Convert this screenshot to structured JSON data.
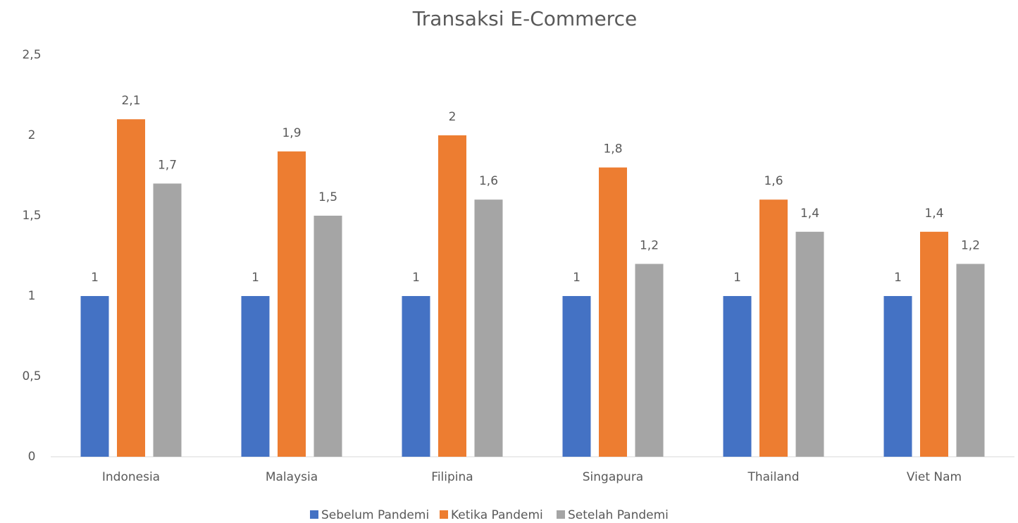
{
  "chart_data": {
    "type": "bar",
    "title": "Transaksi E-Commerce",
    "categories": [
      "Indonesia",
      "Malaysia",
      "Filipina",
      "Singapura",
      "Thailand",
      "Viet Nam"
    ],
    "series": [
      {
        "name": "Sebelum Pandemi",
        "color": "#4472c4",
        "values": [
          1,
          1,
          1,
          1,
          1,
          1
        ],
        "value_labels": [
          "1",
          "1",
          "1",
          "1",
          "1",
          "1"
        ]
      },
      {
        "name": "Ketika Pandemi",
        "color": "#ed7d31",
        "values": [
          2.1,
          1.9,
          2,
          1.8,
          1.6,
          1.4
        ],
        "value_labels": [
          "2,1",
          "1,9",
          "2",
          "1,8",
          "1,6",
          "1,4"
        ]
      },
      {
        "name": "Setelah Pandemi",
        "color": "#a5a5a5",
        "values": [
          1.7,
          1.5,
          1.6,
          1.2,
          1.4,
          1.2
        ],
        "value_labels": [
          "1,7",
          "1,5",
          "1,6",
          "1,2",
          "1,4",
          "1,2"
        ]
      }
    ],
    "ylim": [
      0,
      2.5
    ],
    "yticks": [
      0,
      {
        "value": 0.5,
        "label": "0,5"
      },
      1,
      {
        "value": 1.5,
        "label": "1,5"
      },
      2,
      {
        "value": 2.5,
        "label": "2,5"
      }
    ],
    "grid": false,
    "legend": "bottom"
  }
}
